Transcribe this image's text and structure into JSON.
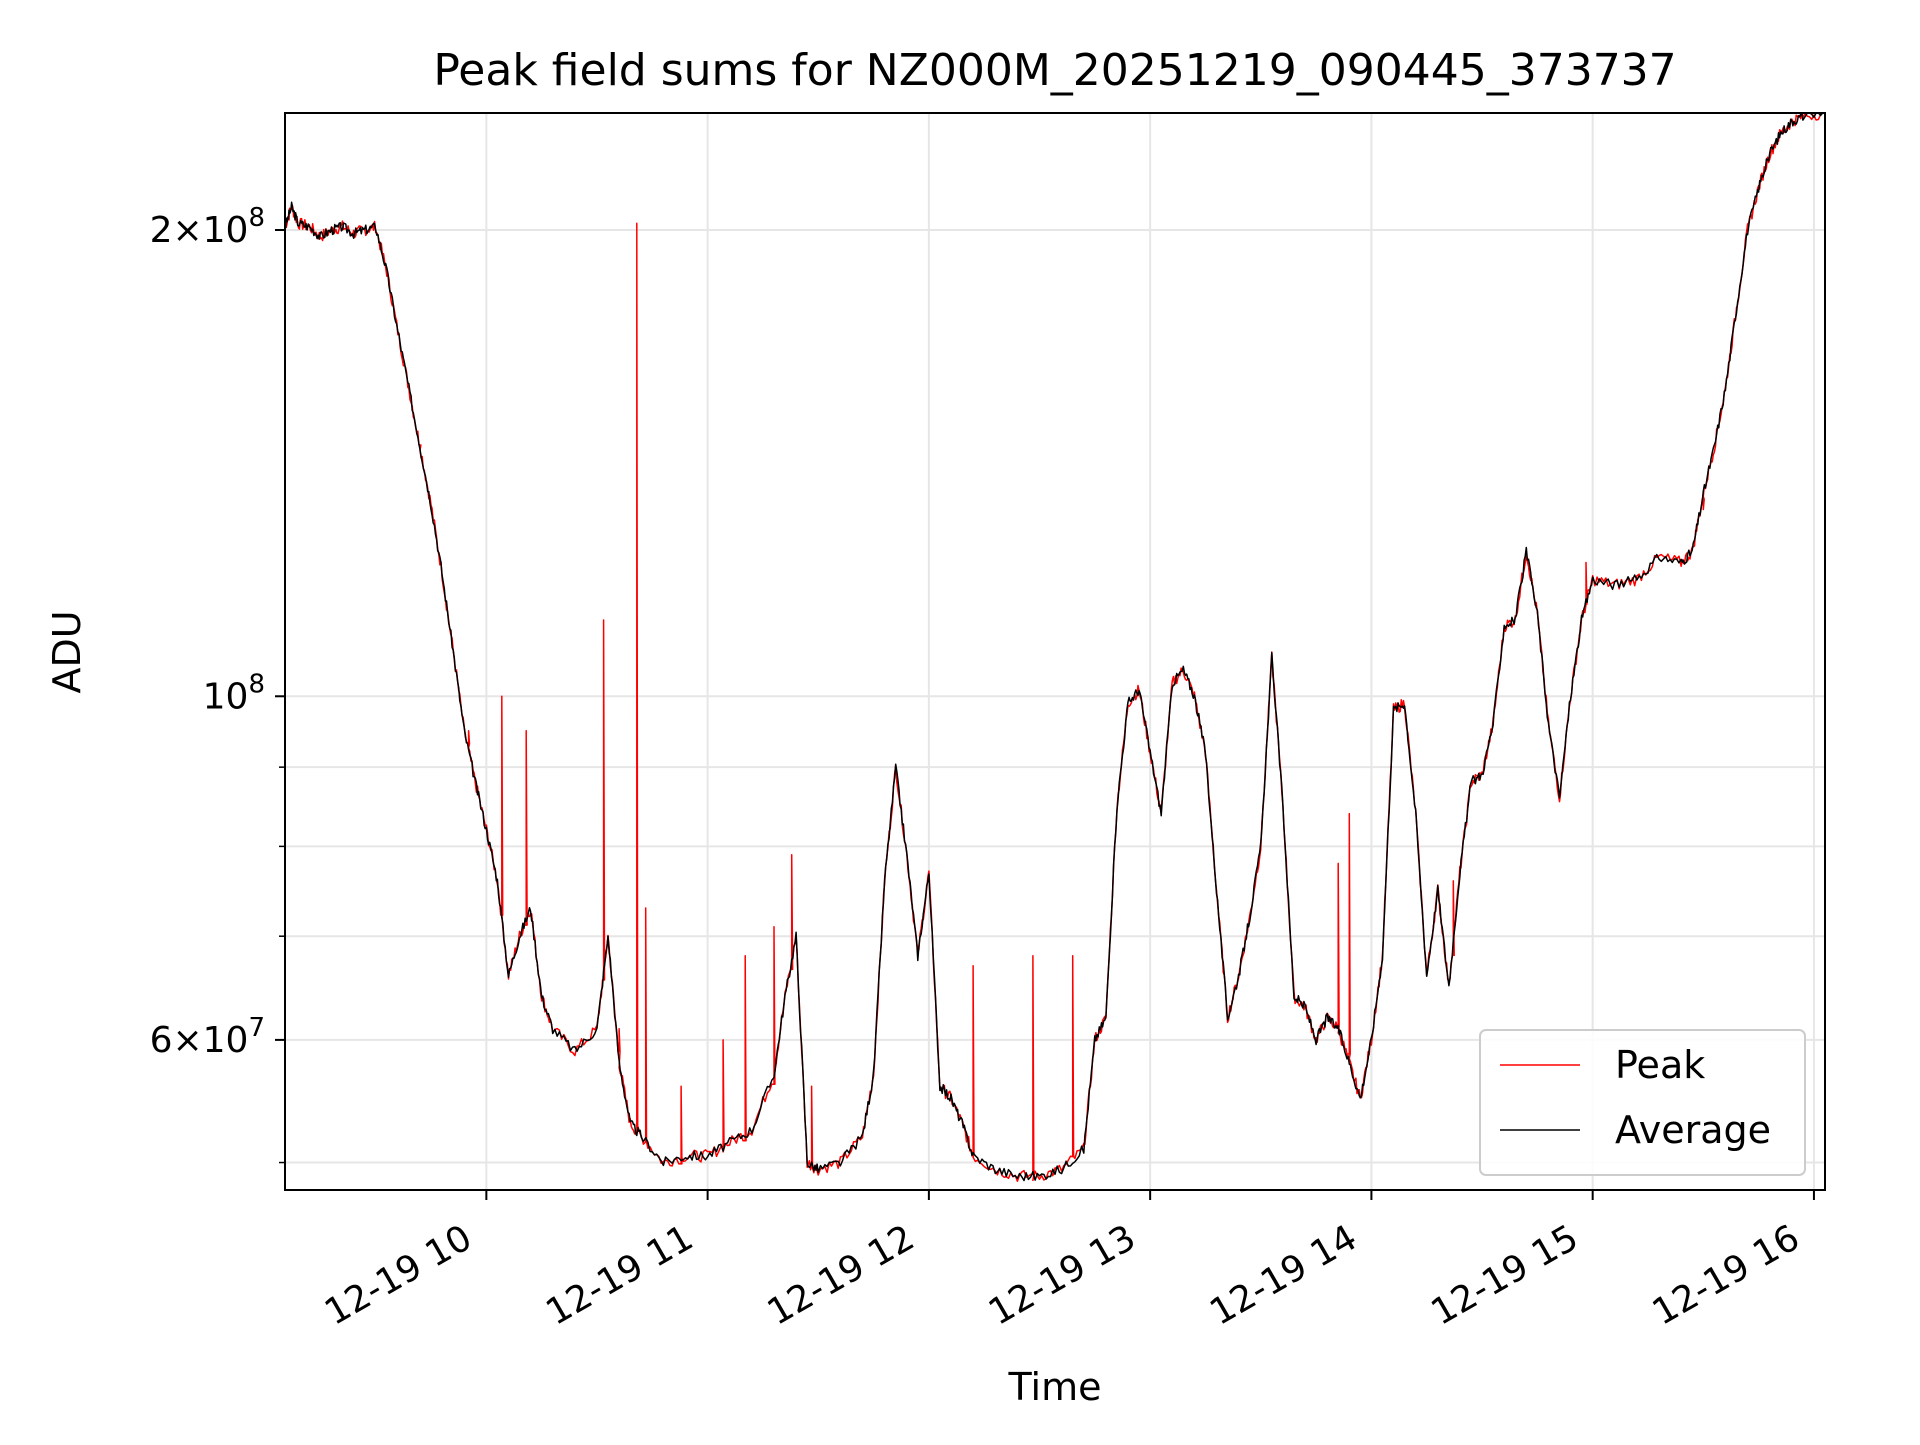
{
  "chart_data": {
    "type": "line",
    "title": "Peak field sums for NZ000M_20251219_090445_373737",
    "xlabel": "Time",
    "ylabel": "ADU",
    "yscale": "log",
    "grid": true,
    "xlim": [
      9.09,
      16.05
    ],
    "ylim": [
      48000000,
      238000000
    ],
    "x_ticks": [
      {
        "value": 10,
        "label": "12-19 10"
      },
      {
        "value": 11,
        "label": "12-19 11"
      },
      {
        "value": 12,
        "label": "12-19 12"
      },
      {
        "value": 13,
        "label": "12-19 13"
      },
      {
        "value": 14,
        "label": "12-19 14"
      },
      {
        "value": 15,
        "label": "12-19 15"
      },
      {
        "value": 16,
        "label": "12-19 16"
      }
    ],
    "y_major_ticks": [
      {
        "value": 100000000,
        "mant": "",
        "exp": "8"
      },
      {
        "value": 60000000,
        "mant": "6",
        "exp": "7"
      },
      {
        "value": 200000000,
        "mant": "2",
        "exp": "8"
      }
    ],
    "y_minor_ticks": [
      50000000,
      70000000,
      80000000,
      90000000
    ],
    "legend": {
      "position": "lower-right",
      "entries": [
        {
          "name": "Peak",
          "color": "#ff0000"
        },
        {
          "name": "Average",
          "color": "#000000"
        }
      ]
    },
    "series": [
      {
        "name": "Average",
        "color": "#000000",
        "points": [
          [
            9.09,
            201000000
          ],
          [
            9.12,
            207000000
          ],
          [
            9.15,
            202000000
          ],
          [
            9.2,
            201000000
          ],
          [
            9.25,
            198000000
          ],
          [
            9.3,
            200000000
          ],
          [
            9.35,
            201000000
          ],
          [
            9.4,
            199000000
          ],
          [
            9.45,
            200000000
          ],
          [
            9.5,
            201000000
          ],
          [
            9.55,
            188000000
          ],
          [
            9.6,
            172000000
          ],
          [
            9.65,
            158000000
          ],
          [
            9.7,
            145000000
          ],
          [
            9.75,
            133000000
          ],
          [
            9.8,
            120000000
          ],
          [
            9.85,
            107000000
          ],
          [
            9.9,
            95000000
          ],
          [
            9.95,
            88000000
          ],
          [
            10.0,
            82000000
          ],
          [
            10.05,
            76000000
          ],
          [
            10.1,
            66000000
          ],
          [
            10.15,
            70000000
          ],
          [
            10.2,
            73000000
          ],
          [
            10.25,
            64000000
          ],
          [
            10.3,
            61000000
          ],
          [
            10.4,
            59000000
          ],
          [
            10.5,
            61000000
          ],
          [
            10.55,
            70000000
          ],
          [
            10.6,
            58000000
          ],
          [
            10.65,
            53000000
          ],
          [
            10.7,
            52000000
          ],
          [
            10.8,
            50000000
          ],
          [
            10.9,
            50500000
          ],
          [
            11.0,
            50500000
          ],
          [
            11.1,
            51500000
          ],
          [
            11.2,
            52500000
          ],
          [
            11.3,
            57000000
          ],
          [
            11.35,
            64000000
          ],
          [
            11.4,
            70000000
          ],
          [
            11.45,
            50000000
          ],
          [
            11.5,
            49500000
          ],
          [
            11.6,
            50000000
          ],
          [
            11.7,
            52000000
          ],
          [
            11.75,
            57000000
          ],
          [
            11.8,
            76000000
          ],
          [
            11.85,
            90000000
          ],
          [
            11.9,
            79000000
          ],
          [
            11.95,
            68000000
          ],
          [
            12.0,
            77000000
          ],
          [
            12.05,
            56000000
          ],
          [
            12.1,
            55000000
          ],
          [
            12.15,
            53000000
          ],
          [
            12.2,
            50500000
          ],
          [
            12.3,
            49500000
          ],
          [
            12.4,
            49000000
          ],
          [
            12.5,
            49000000
          ],
          [
            12.6,
            49500000
          ],
          [
            12.7,
            51000000
          ],
          [
            12.75,
            60000000
          ],
          [
            12.8,
            62000000
          ],
          [
            12.85,
            85000000
          ],
          [
            12.9,
            99000000
          ],
          [
            12.95,
            101000000
          ],
          [
            13.0,
            92000000
          ],
          [
            13.05,
            84000000
          ],
          [
            13.1,
            102000000
          ],
          [
            13.15,
            104000000
          ],
          [
            13.2,
            100000000
          ],
          [
            13.25,
            92000000
          ],
          [
            13.3,
            75000000
          ],
          [
            13.35,
            62000000
          ],
          [
            13.4,
            66000000
          ],
          [
            13.45,
            72000000
          ],
          [
            13.5,
            80000000
          ],
          [
            13.55,
            106000000
          ],
          [
            13.6,
            85000000
          ],
          [
            13.65,
            64000000
          ],
          [
            13.7,
            63000000
          ],
          [
            13.75,
            60000000
          ],
          [
            13.8,
            62000000
          ],
          [
            13.85,
            61000000
          ],
          [
            13.9,
            58000000
          ],
          [
            13.95,
            55000000
          ],
          [
            14.0,
            60000000
          ],
          [
            14.05,
            68000000
          ],
          [
            14.1,
            98000000
          ],
          [
            14.15,
            99000000
          ],
          [
            14.2,
            84000000
          ],
          [
            14.25,
            66000000
          ],
          [
            14.3,
            75000000
          ],
          [
            14.35,
            65000000
          ],
          [
            14.4,
            77000000
          ],
          [
            14.45,
            88000000
          ],
          [
            14.5,
            89000000
          ],
          [
            14.55,
            96000000
          ],
          [
            14.6,
            111000000
          ],
          [
            14.65,
            112000000
          ],
          [
            14.7,
            124000000
          ],
          [
            14.75,
            113000000
          ],
          [
            14.8,
            96000000
          ],
          [
            14.85,
            86000000
          ],
          [
            14.9,
            100000000
          ],
          [
            14.95,
            112000000
          ],
          [
            15.0,
            119000000
          ],
          [
            15.1,
            118000000
          ],
          [
            15.2,
            119000000
          ],
          [
            15.3,
            123000000
          ],
          [
            15.4,
            122000000
          ],
          [
            15.45,
            124000000
          ],
          [
            15.5,
            135000000
          ],
          [
            15.55,
            145000000
          ],
          [
            15.6,
            158000000
          ],
          [
            15.65,
            178000000
          ],
          [
            15.7,
            200000000
          ],
          [
            15.75,
            213000000
          ],
          [
            15.8,
            224000000
          ],
          [
            15.85,
            231000000
          ],
          [
            15.9,
            235000000
          ],
          [
            15.95,
            237000000
          ],
          [
            16.05,
            238000000
          ]
        ]
      },
      {
        "name": "Peak",
        "color": "#ff0000",
        "spikes": [
          [
            9.7,
            145000000
          ],
          [
            9.92,
            95000000
          ],
          [
            10.07,
            100000000
          ],
          [
            10.18,
            95000000
          ],
          [
            10.53,
            112000000
          ],
          [
            10.6,
            61000000
          ],
          [
            10.68,
            202000000
          ],
          [
            10.72,
            73000000
          ],
          [
            10.88,
            56000000
          ],
          [
            11.07,
            60000000
          ],
          [
            11.17,
            68000000
          ],
          [
            11.3,
            71000000
          ],
          [
            11.38,
            79000000
          ],
          [
            11.47,
            56000000
          ],
          [
            12.2,
            67000000
          ],
          [
            12.47,
            68000000
          ],
          [
            12.65,
            68000000
          ],
          [
            13.85,
            78000000
          ],
          [
            13.9,
            84000000
          ],
          [
            14.37,
            76000000
          ],
          [
            14.97,
            122000000
          ],
          [
            15.5,
            132000000
          ]
        ]
      }
    ]
  }
}
